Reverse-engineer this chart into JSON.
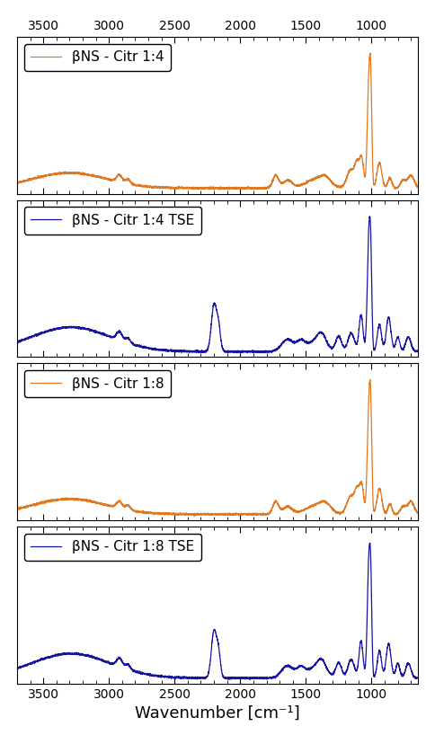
{
  "xlabel": "Wavenumber [cm⁻¹]",
  "x_min": 650,
  "x_max": 3700,
  "x_ticks": [
    3500,
    3000,
    2500,
    2000,
    1500,
    1000
  ],
  "panels": [
    {
      "label": "βNS - Citr 1:4",
      "color": "#e07820",
      "type": "orange"
    },
    {
      "label": "βNS - Citr 1:4 TSE",
      "color": "#1515a0",
      "type": "blue"
    },
    {
      "label": "βNS - Citr 1:8",
      "color": "#e07820",
      "type": "orange"
    },
    {
      "label": "βNS - Citr 1:8 TSE",
      "color": "#1515a0",
      "type": "blue"
    }
  ],
  "line_width": 0.9,
  "legend_fontsize": 11,
  "tick_fontsize": 10,
  "xlabel_fontsize": 13
}
